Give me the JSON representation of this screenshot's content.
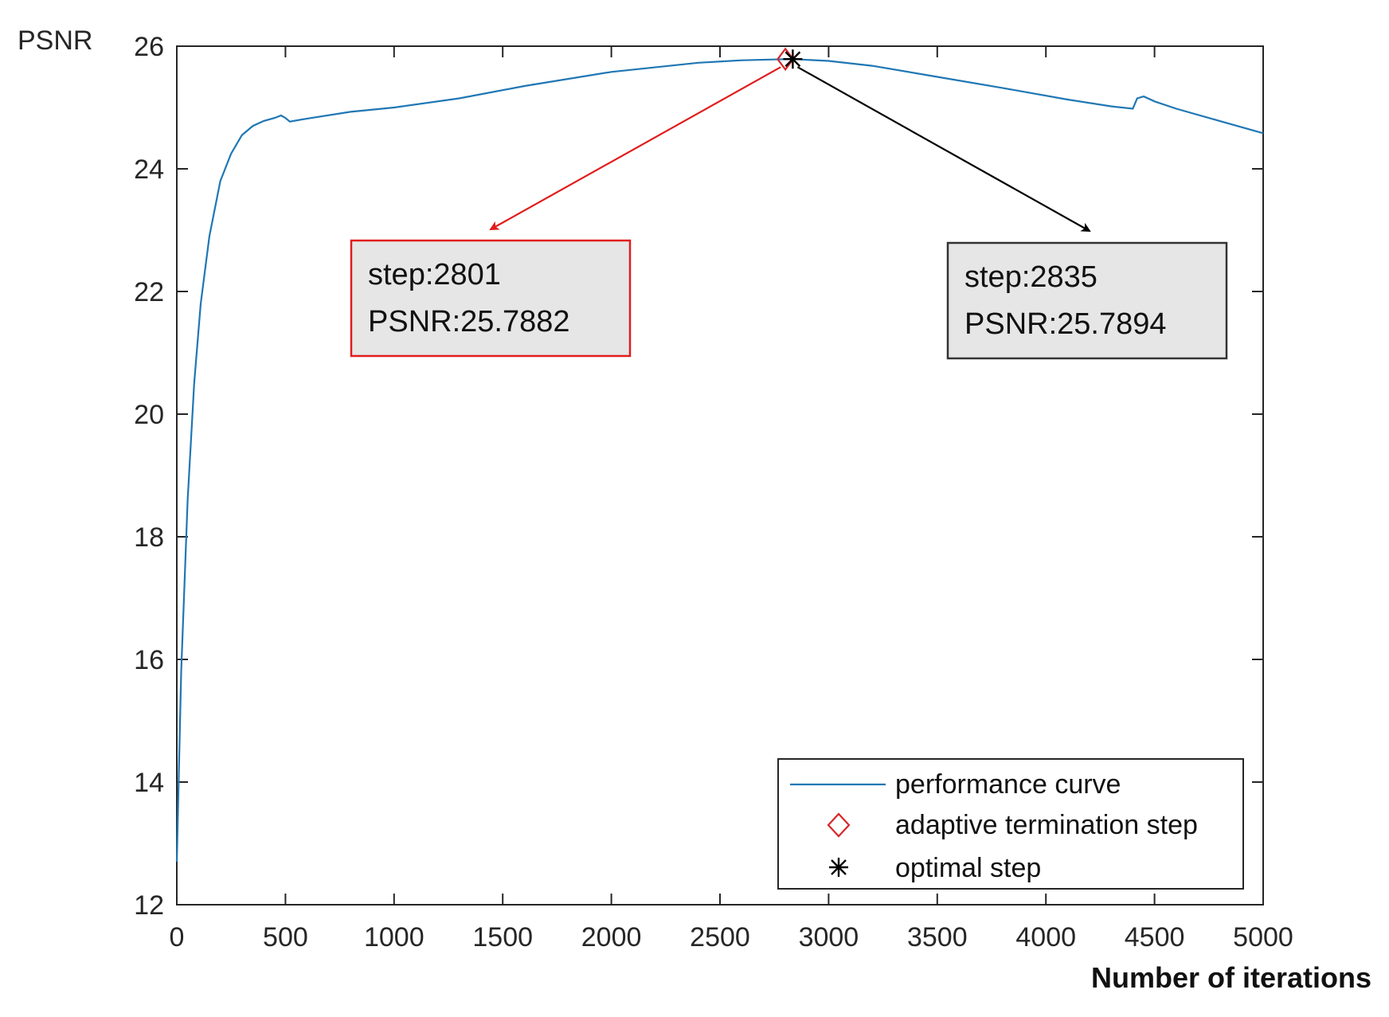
{
  "chart_data": {
    "type": "line",
    "title": "",
    "xlabel": "Number of iterations",
    "ylabel": "PSNR",
    "xlim": [
      0,
      5000
    ],
    "ylim": [
      12,
      26
    ],
    "xticks": [
      0,
      500,
      1000,
      1500,
      2000,
      2500,
      3000,
      3500,
      4000,
      4500,
      5000
    ],
    "yticks": [
      12,
      14,
      16,
      18,
      20,
      22,
      24,
      26
    ],
    "xtick_labels": [
      "0",
      "500",
      "1000",
      "1500",
      "2000",
      "2500",
      "3000",
      "3500",
      "4000",
      "4500",
      "5000"
    ],
    "ytick_labels": [
      "12",
      "14",
      "16",
      "18",
      "20",
      "22",
      "24",
      "26"
    ],
    "grid": false,
    "legend_position": "bottom-right",
    "series": [
      {
        "name": "performance curve",
        "color": "#1f77b4",
        "x": [
          0,
          20,
          50,
          80,
          110,
          150,
          200,
          250,
          300,
          350,
          400,
          450,
          480,
          500,
          520,
          600,
          800,
          1000,
          1300,
          1600,
          2000,
          2400,
          2600,
          2801,
          2835,
          3000,
          3200,
          3500,
          3800,
          4100,
          4300,
          4400,
          4420,
          4450,
          4500,
          4600,
          4800,
          5000
        ],
        "y": [
          12.7,
          15.8,
          18.6,
          20.5,
          21.8,
          22.9,
          23.8,
          24.25,
          24.55,
          24.7,
          24.78,
          24.83,
          24.87,
          24.83,
          24.77,
          24.82,
          24.93,
          25.0,
          25.15,
          25.35,
          25.58,
          25.73,
          25.77,
          25.7882,
          25.7894,
          25.76,
          25.68,
          25.5,
          25.32,
          25.13,
          25.02,
          24.98,
          25.15,
          25.18,
          25.1,
          24.98,
          24.78,
          24.58
        ]
      },
      {
        "name": "adaptive termination step",
        "marker": "diamond",
        "color": "#d62728",
        "x": [
          2801
        ],
        "y": [
          25.7882
        ]
      },
      {
        "name": "optimal step",
        "marker": "asterisk",
        "color": "#000000",
        "x": [
          2835
        ],
        "y": [
          25.7894
        ]
      }
    ],
    "annotations": [
      {
        "line1": "step:2801",
        "line2": "PSNR:25.7882",
        "color": "#d62728",
        "target_x": 2801,
        "target_y": 25.7882
      },
      {
        "line1": "step:2835",
        "line2": "PSNR:25.7894",
        "color": "#000000",
        "target_x": 2835,
        "target_y": 25.7894
      }
    ]
  }
}
